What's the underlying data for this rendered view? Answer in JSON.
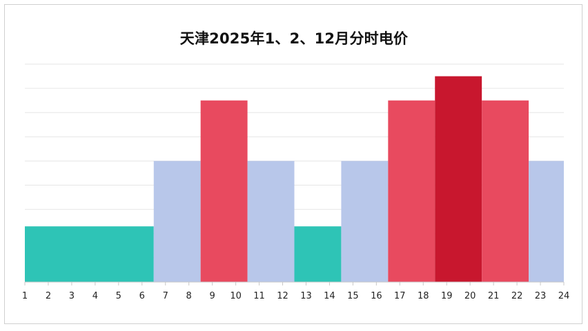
{
  "chart_data": {
    "type": "bar",
    "title": "天津2025年1、2、12月分时电价",
    "xlabel": "",
    "ylabel": "",
    "categories": [
      "1",
      "2",
      "3",
      "4",
      "5",
      "6",
      "7",
      "8",
      "9",
      "10",
      "11",
      "12",
      "13",
      "14",
      "15",
      "16",
      "17",
      "18",
      "19",
      "20",
      "21",
      "22",
      "23",
      "24"
    ],
    "segments": [
      {
        "from": 1,
        "to": 6.5,
        "value": 2.3,
        "tier": "valley"
      },
      {
        "from": 6.5,
        "to": 8.5,
        "value": 5.0,
        "tier": "flat"
      },
      {
        "from": 8.5,
        "to": 10.5,
        "value": 7.5,
        "tier": "peak"
      },
      {
        "from": 10.5,
        "to": 12.5,
        "value": 5.0,
        "tier": "flat"
      },
      {
        "from": 12.5,
        "to": 14.5,
        "value": 2.3,
        "tier": "valley"
      },
      {
        "from": 14.5,
        "to": 16.5,
        "value": 5.0,
        "tier": "flat"
      },
      {
        "from": 16.5,
        "to": 18.5,
        "value": 7.5,
        "tier": "peak"
      },
      {
        "from": 18.5,
        "to": 20.5,
        "value": 8.5,
        "tier": "sharp-peak"
      },
      {
        "from": 20.5,
        "to": 22.5,
        "value": 7.5,
        "tier": "peak"
      },
      {
        "from": 22.5,
        "to": 24,
        "value": 5.0,
        "tier": "flat"
      }
    ],
    "xlim": [
      1,
      24
    ],
    "ylim": [
      0,
      9
    ],
    "grid": true,
    "colors": {
      "valley": "#2ec4b6",
      "flat": "#b8c7ea",
      "peak": "#e84a5f",
      "sharp-peak": "#c8172e",
      "grid": "#e6e6e6",
      "axis": "#c8c8c8"
    }
  }
}
